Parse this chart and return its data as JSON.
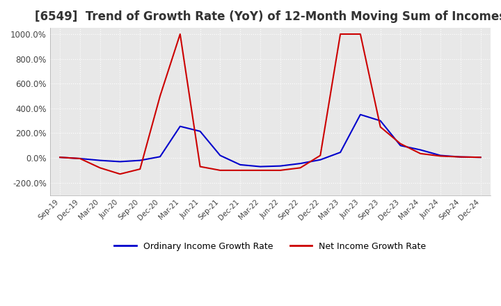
{
  "title": "[6549]  Trend of Growth Rate (YoY) of 12-Month Moving Sum of Incomes",
  "title_fontsize": 12,
  "ylim": [
    -300,
    1050
  ],
  "yticks": [
    -200,
    0,
    200,
    400,
    600,
    800,
    1000
  ],
  "ytick_labels": [
    "-200.0%",
    "0.0%",
    "200.0%",
    "400.0%",
    "600.0%",
    "800.0%",
    "1000.0%"
  ],
  "background_color": "#ffffff",
  "plot_bg_color": "#e8e8e8",
  "grid_color": "#ffffff",
  "ordinary_color": "#0000cc",
  "net_color": "#cc0000",
  "legend_ordinary": "Ordinary Income Growth Rate",
  "legend_net": "Net Income Growth Rate",
  "x_labels": [
    "Sep-19",
    "Dec-19",
    "Mar-20",
    "Jun-20",
    "Sep-20",
    "Dec-20",
    "Mar-21",
    "Jun-21",
    "Sep-21",
    "Dec-21",
    "Mar-22",
    "Jun-22",
    "Sep-22",
    "Dec-22",
    "Mar-23",
    "Jun-23",
    "Sep-23",
    "Dec-23",
    "Mar-24",
    "Jun-24",
    "Sep-24",
    "Dec-24"
  ],
  "ordinary_values": [
    5,
    -5,
    -20,
    -30,
    -20,
    10,
    255,
    215,
    20,
    -55,
    -70,
    -65,
    -45,
    -15,
    45,
    350,
    300,
    100,
    65,
    20,
    8,
    5
  ],
  "net_values": [
    5,
    -5,
    -80,
    -130,
    -90,
    500,
    1000,
    -70,
    -100,
    -100,
    -100,
    -100,
    -80,
    20,
    1000,
    1000,
    250,
    115,
    35,
    15,
    8,
    5
  ]
}
